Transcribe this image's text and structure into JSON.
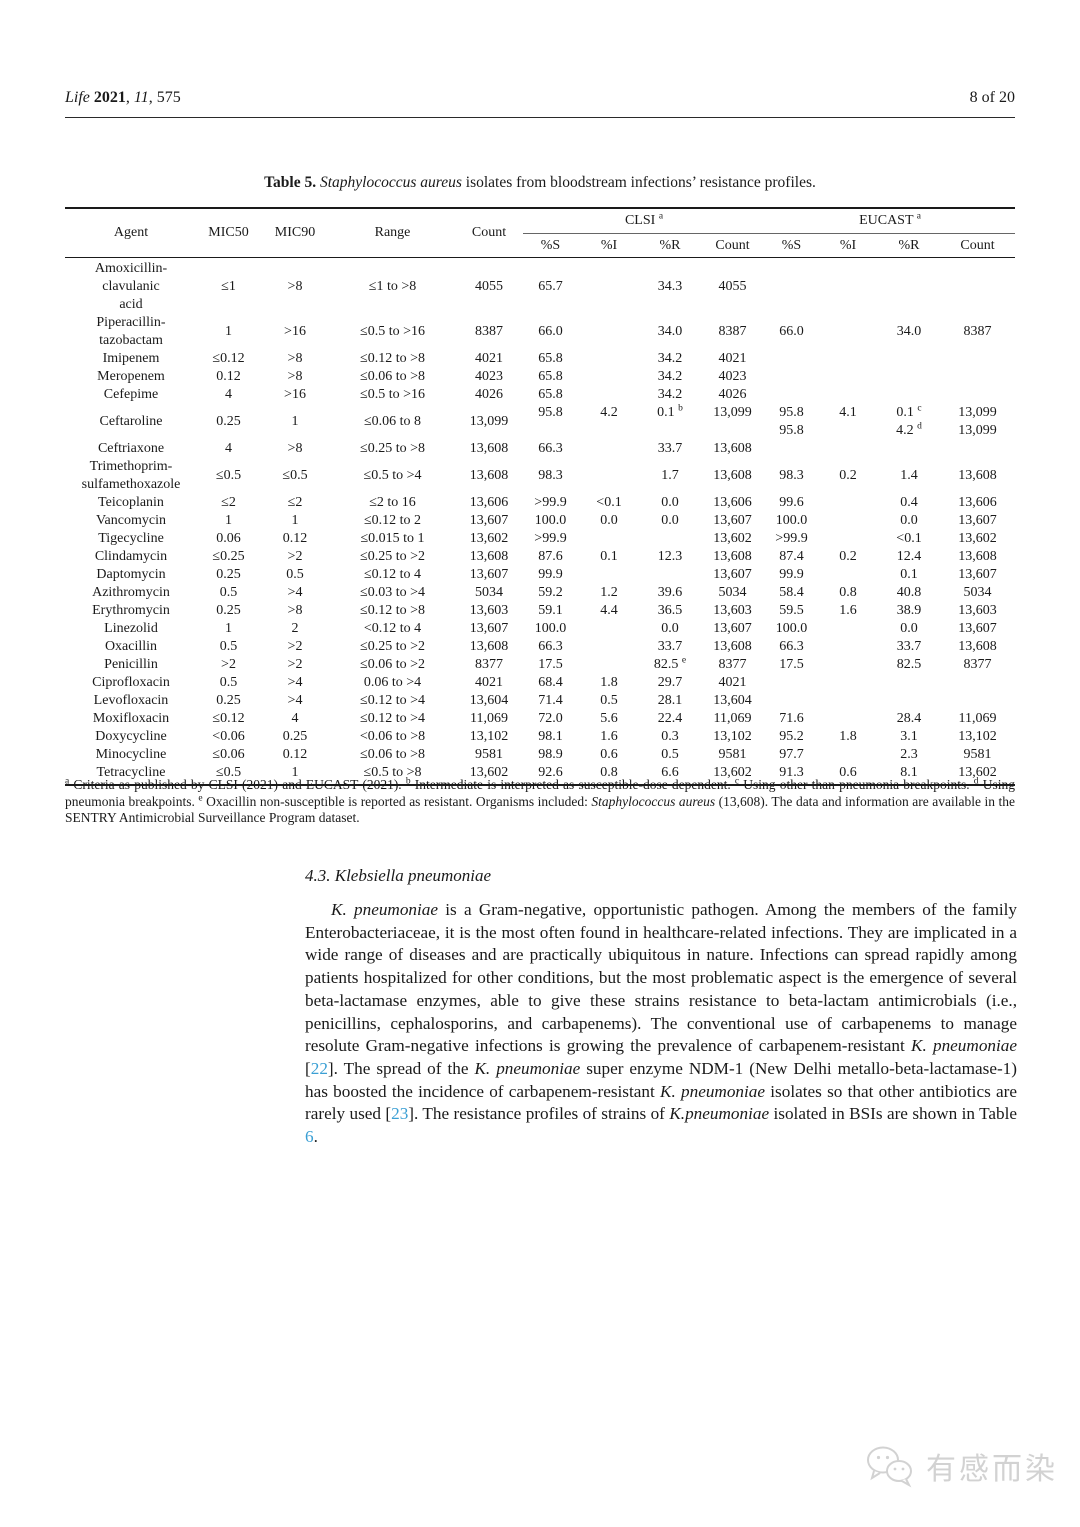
{
  "header": {
    "citation": [
      {
        "t": "Life",
        "s": "i"
      },
      {
        "t": " 2021",
        "s": "b"
      },
      {
        "t": ", "
      },
      {
        "t": "11",
        "s": "i"
      },
      {
        "t": ", 575"
      }
    ],
    "page_indicator": "8 of 20"
  },
  "table5": {
    "caption": [
      {
        "t": "Table 5. ",
        "s": "b"
      },
      {
        "t": "Staphylococcus aureus",
        "s": "i"
      },
      {
        "t": " isolates from bloodstream infections’ resistance profiles."
      }
    ],
    "main_headers": [
      "Agent",
      "MIC50",
      "MIC90",
      "Range",
      "Count"
    ],
    "groups": [
      {
        "label": "CLSI",
        "sup": "a"
      },
      {
        "label": "EUCAST",
        "sup": "a"
      }
    ],
    "sub_headers": [
      "%S",
      "%I",
      "%R",
      "Count",
      "%S",
      "%I",
      "%R",
      "Count"
    ],
    "rows": [
      {
        "agent": [
          "Amoxicillin-",
          "clavulanic",
          "acid"
        ],
        "cells": [
          "≤1",
          ">8",
          "≤1 to >8",
          "4055",
          "65.7",
          "",
          "34.3",
          "4055",
          "",
          "",
          "",
          ""
        ]
      },
      {
        "agent": [
          "Piperacillin-",
          "tazobactam"
        ],
        "cells": [
          "1",
          ">16",
          "≤0.5 to >16",
          "8387",
          "66.0",
          "",
          "34.0",
          "8387",
          "66.0",
          "",
          "34.0",
          "8387"
        ]
      },
      {
        "agent": [
          "Imipenem"
        ],
        "cells": [
          "≤0.12",
          ">8",
          "≤0.12 to >8",
          "4021",
          "65.8",
          "",
          "34.2",
          "4021",
          "",
          "",
          "",
          ""
        ]
      },
      {
        "agent": [
          "Meropenem"
        ],
        "cells": [
          "0.12",
          ">8",
          "≤0.06 to >8",
          "4023",
          "65.8",
          "",
          "34.2",
          "4023",
          "",
          "",
          "",
          ""
        ]
      },
      {
        "agent": [
          "Cefepime"
        ],
        "cells": [
          "4",
          ">16",
          "≤0.5 to >16",
          "4026",
          "65.8",
          "",
          "34.2",
          "4026",
          "",
          "",
          "",
          ""
        ]
      },
      {
        "agent": [
          "Ceftaroline"
        ],
        "cells": [
          "0.25",
          "1",
          "≤0.06 to 8",
          "13,099",
          [
            "95.8",
            ""
          ],
          [
            "4.2",
            ""
          ],
          [
            "0.1|b",
            ""
          ],
          [
            "13,099",
            ""
          ],
          [
            "95.8",
            "95.8"
          ],
          [
            "4.1",
            ""
          ],
          [
            "0.1|c",
            "4.2|d"
          ],
          [
            "13,099",
            "13,099"
          ]
        ]
      },
      {
        "agent": [
          "Ceftriaxone"
        ],
        "cells": [
          "4",
          ">8",
          "≤0.25 to >8",
          "13,608",
          "66.3",
          "",
          "33.7",
          "13,608",
          "",
          "",
          "",
          ""
        ]
      },
      {
        "agent": [
          "Trimethoprim-",
          "sulfamethoxazole"
        ],
        "cells": [
          "≤0.5",
          "≤0.5",
          "≤0.5 to >4",
          "13,608",
          "98.3",
          "",
          "1.7",
          "13,608",
          "98.3",
          "0.2",
          "1.4",
          "13,608"
        ]
      },
      {
        "agent": [
          "Teicoplanin"
        ],
        "cells": [
          "≤2",
          "≤2",
          "≤2 to 16",
          "13,606",
          ">99.9",
          "<0.1",
          "0.0",
          "13,606",
          "99.6",
          "",
          "0.4",
          "13,606"
        ]
      },
      {
        "agent": [
          "Vancomycin"
        ],
        "cells": [
          "1",
          "1",
          "≤0.12 to 2",
          "13,607",
          "100.0",
          "0.0",
          "0.0",
          "13,607",
          "100.0",
          "",
          "0.0",
          "13,607"
        ]
      },
      {
        "agent": [
          "Tigecycline"
        ],
        "cells": [
          "0.06",
          "0.12",
          "≤0.015 to 1",
          "13,602",
          ">99.9",
          "",
          "",
          "13,602",
          ">99.9",
          "",
          "<0.1",
          "13,602"
        ]
      },
      {
        "agent": [
          "Clindamycin"
        ],
        "cells": [
          "≤0.25",
          ">2",
          "≤0.25 to >2",
          "13,608",
          "87.6",
          "0.1",
          "12.3",
          "13,608",
          "87.4",
          "0.2",
          "12.4",
          "13,608"
        ]
      },
      {
        "agent": [
          "Daptomycin"
        ],
        "cells": [
          "0.25",
          "0.5",
          "≤0.12 to 4",
          "13,607",
          "99.9",
          "",
          "",
          "13,607",
          "99.9",
          "",
          "0.1",
          "13,607"
        ]
      },
      {
        "agent": [
          "Azithromycin"
        ],
        "cells": [
          "0.5",
          ">4",
          "≤0.03 to >4",
          "5034",
          "59.2",
          "1.2",
          "39.6",
          "5034",
          "58.4",
          "0.8",
          "40.8",
          "5034"
        ]
      },
      {
        "agent": [
          "Erythromycin"
        ],
        "cells": [
          "0.25",
          ">8",
          "≤0.12 to >8",
          "13,603",
          "59.1",
          "4.4",
          "36.5",
          "13,603",
          "59.5",
          "1.6",
          "38.9",
          "13,603"
        ]
      },
      {
        "agent": [
          "Linezolid"
        ],
        "cells": [
          "1",
          "2",
          "<0.12 to 4",
          "13,607",
          "100.0",
          "",
          "0.0",
          "13,607",
          "100.0",
          "",
          "0.0",
          "13,607"
        ]
      },
      {
        "agent": [
          "Oxacillin"
        ],
        "cells": [
          "0.5",
          ">2",
          "≤0.25 to >2",
          "13,608",
          "66.3",
          "",
          "33.7",
          "13,608",
          "66.3",
          "",
          "33.7",
          "13,608"
        ]
      },
      {
        "agent": [
          "Penicillin"
        ],
        "cells": [
          ">2",
          ">2",
          "≤0.06 to >2",
          "8377",
          "17.5",
          "",
          "82.5|e",
          "8377",
          "17.5",
          "",
          "82.5",
          "8377"
        ]
      },
      {
        "agent": [
          "Ciprofloxacin"
        ],
        "cells": [
          "0.5",
          ">4",
          "0.06 to >4",
          "4021",
          "68.4",
          "1.8",
          "29.7",
          "4021",
          "",
          "",
          "",
          ""
        ]
      },
      {
        "agent": [
          "Levofloxacin"
        ],
        "cells": [
          "0.25",
          ">4",
          "≤0.12 to >4",
          "13,604",
          "71.4",
          "0.5",
          "28.1",
          "13,604",
          "",
          "",
          "",
          ""
        ]
      },
      {
        "agent": [
          "Moxifloxacin"
        ],
        "cells": [
          "≤0.12",
          "4",
          "≤0.12 to >4",
          "11,069",
          "72.0",
          "5.6",
          "22.4",
          "11,069",
          "71.6",
          "",
          "28.4",
          "11,069"
        ]
      },
      {
        "agent": [
          "Doxycycline"
        ],
        "cells": [
          "<0.06",
          "0.25",
          "<0.06 to >8",
          "13,102",
          "98.1",
          "1.6",
          "0.3",
          "13,102",
          "95.2",
          "1.8",
          "3.1",
          "13,102"
        ]
      },
      {
        "agent": [
          "Minocycline"
        ],
        "cells": [
          "≤0.06",
          "0.12",
          "≤0.06 to >8",
          "9581",
          "98.9",
          "0.6",
          "0.5",
          "9581",
          "97.7",
          "",
          "2.3",
          "9581"
        ]
      },
      {
        "agent": [
          "Tetracycline"
        ],
        "cells": [
          "≤0.5",
          "1",
          "≤0.5 to >8",
          "13,602",
          "92.6",
          "0.8",
          "6.6",
          "13,602",
          "91.3",
          "0.6",
          "8.1",
          "13,602"
        ]
      }
    ],
    "footnote": [
      {
        "t": "a",
        "s": "sup"
      },
      {
        "t": " Criteria as published by CLSI (2021) and EUCAST (2021). "
      },
      {
        "t": "b",
        "s": "sup"
      },
      {
        "t": " Intermediate is interpreted as susceptible-dose dependent. "
      },
      {
        "t": "c",
        "s": "sup"
      },
      {
        "t": " Using other than pneumonia breakpoints. "
      },
      {
        "t": "d",
        "s": "sup"
      },
      {
        "t": " Using pneumonia breakpoints. "
      },
      {
        "t": "e",
        "s": "sup"
      },
      {
        "t": " Oxacillin non-susceptible is reported as resistant. Organisms included: "
      },
      {
        "t": "Staphylococcus aureus",
        "s": "i"
      },
      {
        "t": " (13,608). The data and information are available in the SENTRY Antimicrobial Surveillance Program dataset."
      }
    ]
  },
  "section": {
    "heading": "4.3. Klebsiella pneumoniae",
    "paragraph": [
      {
        "t": "K. pneumoniae",
        "s": "i"
      },
      {
        "t": " is a Gram-negative, opportunistic pathogen. Among the members of the family Enterobacteriaceae, it is the most often found in healthcare-related infections. They are implicated in a wide range of diseases and are practically ubiquitous in nature. Infections can spread rapidly among patients hospitalized for other conditions, but the most problematic aspect is the emergence of several beta-lactamase enzymes, able to give these strains resistance to beta-lactam antimicrobials (i.e., penicillins, cephalosporins, and carbapenems). The conventional use of carbapenems to manage resolute Gram-negative infections is growing the prevalence of carbapenem-resistant "
      },
      {
        "t": "K. pneumoniae",
        "s": "i"
      },
      {
        "t": " ["
      },
      {
        "t": "22",
        "s": "link"
      },
      {
        "t": "]. The spread of the "
      },
      {
        "t": "K. pneumoniae",
        "s": "i"
      },
      {
        "t": " super enzyme NDM-1 (New Delhi metallo-beta-lactamase-1) has boosted the incidence of carbapenem-resistant "
      },
      {
        "t": "K. pneumoniae",
        "s": "i"
      },
      {
        "t": " isolates so that other antibiotics are rarely used ["
      },
      {
        "t": "23",
        "s": "link"
      },
      {
        "t": "]. The resistance profiles of strains of "
      },
      {
        "t": "K.pneumoniae",
        "s": "i"
      },
      {
        "t": " isolated in BSIs are shown in Table "
      },
      {
        "t": "6",
        "s": "link"
      },
      {
        "t": "."
      }
    ]
  },
  "watermark": {
    "text": "有感而染"
  },
  "colors": {
    "link": "#3a9fd4",
    "watermark": "#d2d2d2",
    "rule": "#1a1a1a"
  }
}
